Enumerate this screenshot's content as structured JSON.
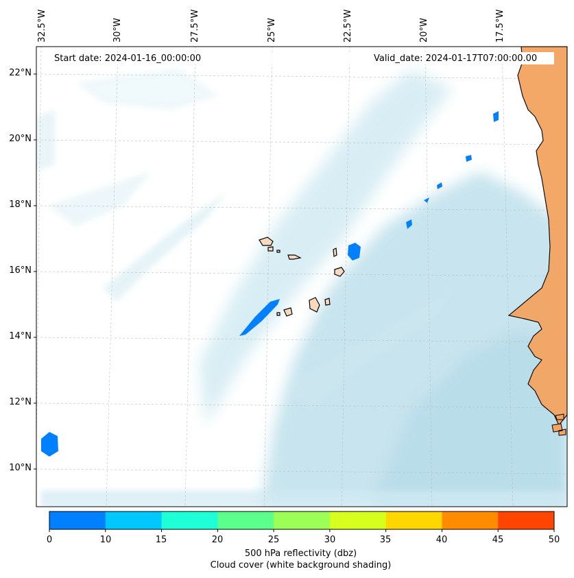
{
  "map": {
    "start_date": "Start date: 2024-01-16_00:00:00",
    "valid_date": "Valid_date: 2024-01-17T07:00:00.00",
    "lon_labels": [
      "32.5°W",
      "30°W",
      "27.5°W",
      "25°W",
      "22.5°W",
      "20°W",
      "17.5°W"
    ],
    "lat_labels": [
      "22°N",
      "20°N",
      "18°N",
      "16°N",
      "14°N",
      "12°N",
      "10°N"
    ],
    "colors": {
      "cloud": "#add8e6",
      "land": "#f4a460",
      "reflectivity_low": "#007fff"
    }
  },
  "colorbar": {
    "ticks": [
      "0",
      "10",
      "15",
      "20",
      "25",
      "30",
      "35",
      "40",
      "45",
      "50"
    ],
    "colors": [
      "#007fff",
      "#00c8ff",
      "#1effd7",
      "#5aff8c",
      "#9bff55",
      "#d7ff1e",
      "#ffd700",
      "#ff8c00",
      "#ff4500"
    ],
    "label_line1": "500 hPa reflectivity (dbz)",
    "label_line2": "Cloud cover (white background shading)"
  }
}
